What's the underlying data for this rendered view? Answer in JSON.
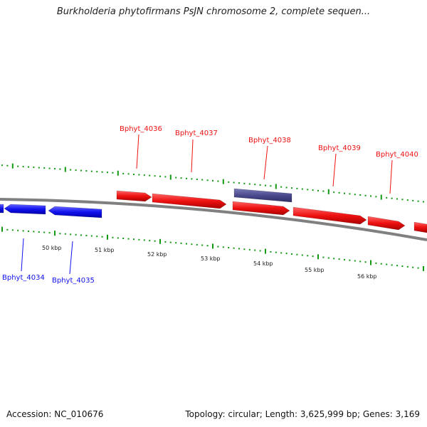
{
  "title": "Burkholderia phytofirmans PsJN chromosome 2, complete sequen...",
  "footer": {
    "accession": "Accession: NC_010676",
    "summary": "Topology: circular; Length: 3,625,999 bp; Genes: 3,169"
  },
  "colors": {
    "forward_gene": "#ee1111",
    "reverse_gene": "#1111ee",
    "highlight_gene": "#4a4a8e",
    "ticks": "#119911",
    "backbone": "#808080"
  },
  "scale_labels": [
    "50 kbp",
    "51 kbp",
    "52 kbp",
    "53 kbp",
    "54 kbp",
    "55 kbp",
    "56 kbp"
  ],
  "gene_labels": {
    "forward": [
      "Bphyt_4036",
      "Bphyt_4037",
      "Bphyt_4038",
      "Bphyt_4039",
      "Bphyt_4040"
    ],
    "reverse": [
      "Bphyt_4034",
      "Bphyt_4035"
    ]
  }
}
